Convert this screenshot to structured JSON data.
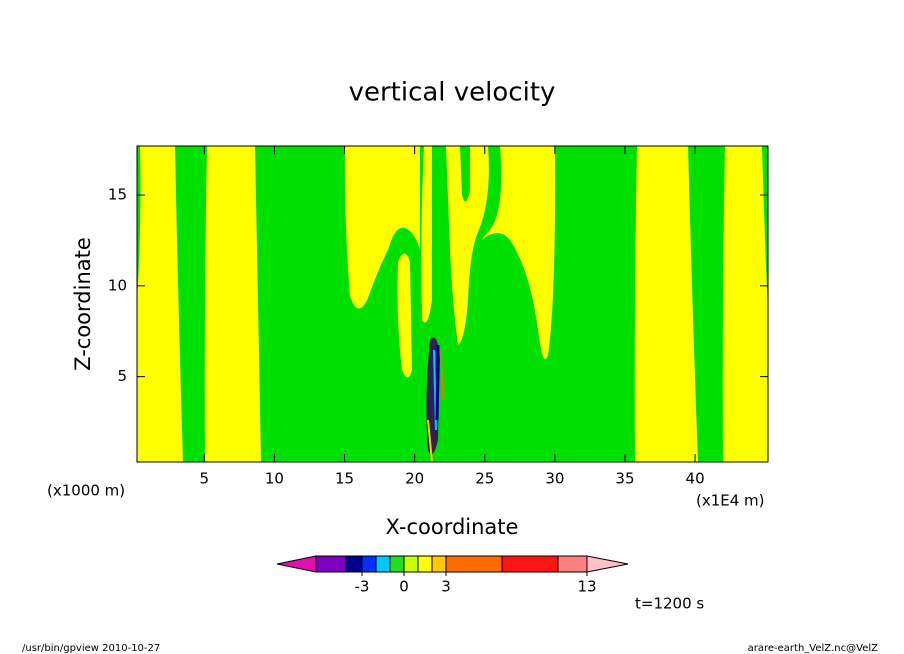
{
  "chart_data": {
    "type": "contour",
    "title": "vertical velocity",
    "xlabel": "X-coordinate",
    "ylabel": "Z-coordinate",
    "xlim": [
      0.2,
      45.2
    ],
    "ylim": [
      0.3,
      17.7
    ],
    "xticks": [
      5,
      10,
      15,
      20,
      25,
      30,
      35,
      40
    ],
    "yticks": [
      5,
      10,
      15
    ],
    "x_unit_left": "(x1000 m)",
    "x_unit_right": "(x1E4 m)",
    "time_label": "t=1200 s",
    "fill_colors": {
      "low": "#00e000",
      "high": "#ffff00"
    },
    "colorbar": {
      "colors": [
        "#e010b0",
        "#8000c0",
        "#000090",
        "#0030ff",
        "#00c8ff",
        "#20e020",
        "#c8ff00",
        "#ffff00",
        "#ffc800",
        "#ff6a00",
        "#ff1414",
        "#ff8080",
        "#ffc0c8"
      ],
      "ticks": [
        -3,
        0,
        3,
        13
      ]
    },
    "footer_left": "/usr/bin/gpview   2010-10-27",
    "footer_right": "arare-earth_VelZ.nc@VelZ"
  }
}
